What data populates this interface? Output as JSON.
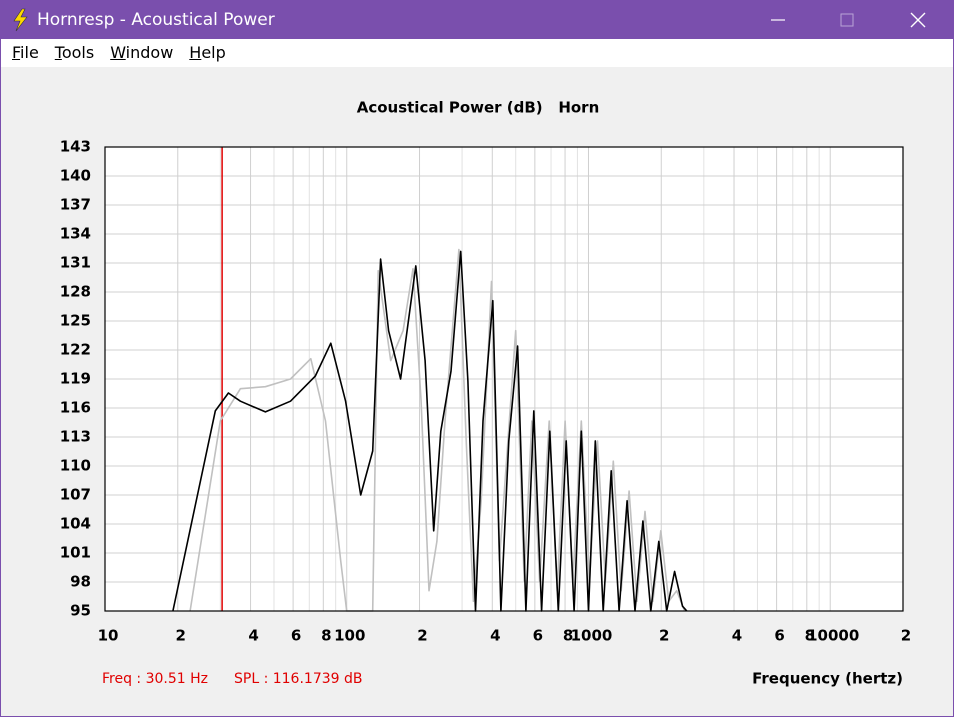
{
  "window": {
    "title": "Hornresp - Acoustical Power",
    "menu": [
      "File",
      "Tools",
      "Window",
      "Help"
    ]
  },
  "chart_data": {
    "type": "line",
    "title": "Acoustical Power (dB)   Horn",
    "xlabel": "Frequency (hertz)",
    "xscale": "log",
    "xlim": [
      10,
      20000
    ],
    "ylim": [
      95,
      143
    ],
    "grid": true,
    "xticks": [
      {
        "value": 10,
        "label": "10"
      },
      {
        "value": 20,
        "label": "2"
      },
      {
        "value": 40,
        "label": "4"
      },
      {
        "value": 60,
        "label": "6"
      },
      {
        "value": 80,
        "label": "8"
      },
      {
        "value": 100,
        "label": "100"
      },
      {
        "value": 200,
        "label": "2"
      },
      {
        "value": 400,
        "label": "4"
      },
      {
        "value": 600,
        "label": "6"
      },
      {
        "value": 800,
        "label": "8"
      },
      {
        "value": 1000,
        "label": "1000"
      },
      {
        "value": 2000,
        "label": "2"
      },
      {
        "value": 4000,
        "label": "4"
      },
      {
        "value": 6000,
        "label": "6"
      },
      {
        "value": 8000,
        "label": "8"
      },
      {
        "value": 10000,
        "label": "10000"
      },
      {
        "value": 20000,
        "label": "2"
      }
    ],
    "xminor": [
      30,
      50,
      70,
      90,
      300,
      500,
      700,
      900,
      3000,
      5000,
      7000,
      9000
    ],
    "yticks": [
      95,
      98,
      101,
      104,
      107,
      110,
      113,
      116,
      119,
      122,
      125,
      128,
      131,
      134,
      137,
      140,
      143
    ],
    "cursor": {
      "x": 30.51,
      "color": "#e00000"
    },
    "status": [
      "Freq : 30.51 Hz",
      "SPL : 116.1739 dB"
    ],
    "series": [
      {
        "color": "#c0c0c0",
        "x": [
          22.5,
          30,
          36.3,
          46.1,
          58.5,
          71,
          81.7,
          94.4,
          100,
          128,
          135,
          152,
          171,
          188,
          203,
          219,
          236,
          255,
          291,
          312,
          334,
          360,
          397,
          428,
          461,
          500,
          542,
          583,
          628,
          688,
          742,
          800,
          862,
          934,
          1010,
          1090,
          1175,
          1267,
          1366,
          1473,
          1588,
          1713,
          1847,
          1991,
          2148,
          2316,
          2497
        ],
        "values": [
          95,
          114.65,
          118,
          118.2,
          119,
          121.1,
          114.65,
          100.2,
          95,
          95,
          130.2,
          120.9,
          124,
          130.4,
          116.7,
          97.1,
          102.2,
          114.65,
          132.4,
          112.6,
          96,
          106.4,
          129.1,
          100.2,
          111.55,
          124,
          98.1,
          114.65,
          98.1,
          114.65,
          97.1,
          114.65,
          98.1,
          114.65,
          98.1,
          112.6,
          98.1,
          110.5,
          97.1,
          107.4,
          96,
          105.3,
          96,
          103.3,
          96,
          97.1,
          95
        ]
      },
      {
        "color": "#000000",
        "x": [
          19.1,
          28.6,
          32.4,
          36.3,
          46.1,
          58.5,
          74.1,
          85.9,
          98.9,
          114.2,
          128,
          138,
          149,
          167,
          193,
          211,
          229,
          245,
          270,
          296,
          317,
          341,
          366,
          402,
          434,
          468,
          509,
          551,
          594,
          640,
          692,
          750,
          809,
          872,
          934,
          1000,
          1067,
          1151,
          1241,
          1339,
          1444,
          1557,
          1679,
          1811,
          1953,
          2106,
          2271,
          2449,
          2551
        ],
        "values": [
          95,
          115.7,
          117.55,
          116.7,
          115.6,
          116.7,
          119.3,
          122.7,
          116.7,
          107,
          111.55,
          131.4,
          124,
          119,
          130.7,
          120.9,
          103.3,
          113.6,
          119.8,
          132.2,
          118.8,
          95,
          114.65,
          127.1,
          95,
          112.6,
          122.4,
          95,
          115.7,
          95,
          113.6,
          95,
          112.6,
          95,
          113.6,
          95,
          112.6,
          95,
          109.5,
          95,
          106.4,
          95,
          104.3,
          95,
          102.2,
          95,
          99.1,
          95.5,
          95
        ]
      }
    ]
  }
}
